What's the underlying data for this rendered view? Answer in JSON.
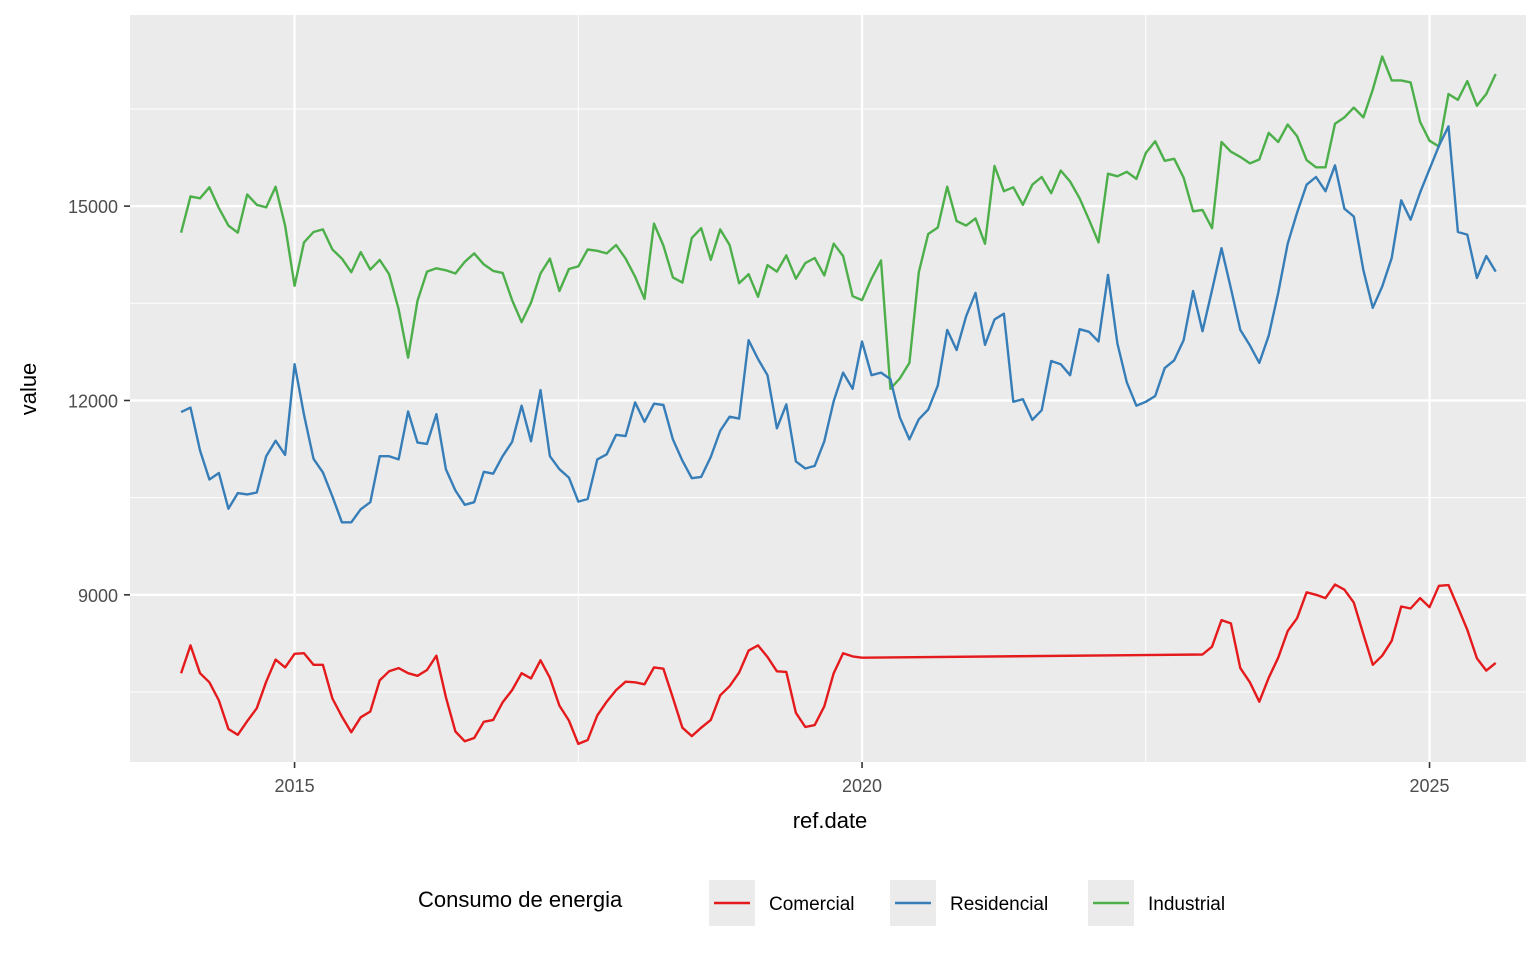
{
  "chart_data": {
    "type": "line",
    "title": "",
    "xlabel": "ref.date",
    "ylabel": "value",
    "xlim": [
      2013.55,
      2025.85
    ],
    "ylim": [
      6420,
      17950
    ],
    "x_ticks": [
      2015,
      2020,
      2025
    ],
    "x_tick_labels": [
      "2015",
      "2020",
      "2025"
    ],
    "y_ticks": [
      9000,
      12000,
      15000
    ],
    "y_tick_labels": [
      "9000",
      "12000",
      "15000"
    ],
    "grid": true,
    "legend": {
      "title": "Consumo de energia",
      "position": "bottom"
    },
    "series": [
      {
        "name": "Industrial",
        "color": "#4DAF4A",
        "x": [
          2014.0,
          2014.083,
          2014.167,
          2014.25,
          2014.333,
          2014.417,
          2014.5,
          2014.583,
          2014.667,
          2014.75,
          2014.833,
          2014.917,
          2015.0,
          2015.083,
          2015.167,
          2015.25,
          2015.333,
          2015.417,
          2015.5,
          2015.583,
          2015.667,
          2015.75,
          2015.833,
          2015.917,
          2016.0,
          2016.083,
          2016.167,
          2016.25,
          2016.333,
          2016.417,
          2016.5,
          2016.583,
          2016.667,
          2016.75,
          2016.833,
          2016.917,
          2017.0,
          2017.083,
          2017.167,
          2017.25,
          2017.333,
          2017.417,
          2017.5,
          2017.583,
          2017.667,
          2017.75,
          2017.833,
          2017.917,
          2018.0,
          2018.083,
          2018.167,
          2018.25,
          2018.333,
          2018.417,
          2018.5,
          2018.583,
          2018.667,
          2018.75,
          2018.833,
          2018.917,
          2019.0,
          2019.083,
          2019.167,
          2019.25,
          2019.333,
          2019.417,
          2019.5,
          2019.583,
          2019.667,
          2019.75,
          2019.833,
          2019.917,
          2020.0,
          2020.083,
          2020.167,
          2020.25,
          2020.333,
          2020.417,
          2020.5,
          2020.583,
          2020.667,
          2020.75,
          2020.833,
          2020.917,
          2021.0,
          2021.083,
          2021.167,
          2021.25,
          2021.333,
          2021.417,
          2021.5,
          2021.583,
          2021.667,
          2021.75,
          2021.833,
          2021.917,
          2022.0,
          2022.083,
          2022.167,
          2022.25,
          2022.333,
          2022.417,
          2022.5,
          2022.583,
          2022.667,
          2022.75,
          2022.833,
          2022.917,
          2023.0,
          2023.083,
          2023.167,
          2023.25,
          2023.333,
          2023.417,
          2023.5,
          2023.583,
          2023.667,
          2023.75,
          2023.833,
          2023.917,
          2024.0,
          2024.083,
          2024.167,
          2024.25,
          2024.333,
          2024.417,
          2024.5,
          2024.583,
          2024.667,
          2024.75,
          2024.833,
          2024.917,
          2025.0,
          2025.083,
          2025.167,
          2025.25,
          2025.333,
          2025.417,
          2025.5,
          2025.583
        ],
        "values": [
          14590,
          15150,
          15120,
          15290,
          14970,
          14700,
          14590,
          15180,
          15020,
          14980,
          15300,
          14700,
          13770,
          14440,
          14600,
          14640,
          14330,
          14190,
          13980,
          14290,
          14020,
          14170,
          13950,
          13410,
          12660,
          13540,
          13990,
          14040,
          14010,
          13960,
          14140,
          14270,
          14100,
          14000,
          13970,
          13550,
          13210,
          13510,
          13960,
          14190,
          13690,
          14030,
          14070,
          14330,
          14310,
          14270,
          14400,
          14190,
          13910,
          13570,
          14730,
          14390,
          13900,
          13820,
          14510,
          14660,
          14170,
          14640,
          14400,
          13810,
          13950,
          13600,
          14090,
          13990,
          14240,
          13880,
          14120,
          14200,
          13930,
          14420,
          14230,
          13610,
          13550,
          13880,
          14160,
          12180,
          12340,
          12580,
          13980,
          14570,
          14670,
          15300,
          14770,
          14700,
          14810,
          14420,
          15620,
          15230,
          15290,
          15020,
          15330,
          15450,
          15200,
          15550,
          15380,
          15120,
          14790,
          14440,
          15500,
          15460,
          15530,
          15420,
          15820,
          16000,
          15700,
          15730,
          15440,
          14920,
          14940,
          14660,
          15990,
          15840,
          15760,
          15660,
          15720,
          16130,
          15990,
          16260,
          16080,
          15710,
          15600,
          15600,
          16270,
          16370,
          16520,
          16370,
          16800,
          17310,
          16940,
          16940,
          16910,
          16300,
          16010,
          15920,
          16730,
          16640,
          16930,
          16550,
          16730,
          17040
        ]
      },
      {
        "name": "Residencial",
        "color": "#377EB8",
        "x": [
          2014.0,
          2014.083,
          2014.167,
          2014.25,
          2014.333,
          2014.417,
          2014.5,
          2014.583,
          2014.667,
          2014.75,
          2014.833,
          2014.917,
          2015.0,
          2015.083,
          2015.167,
          2015.25,
          2015.333,
          2015.417,
          2015.5,
          2015.583,
          2015.667,
          2015.75,
          2015.833,
          2015.917,
          2016.0,
          2016.083,
          2016.167,
          2016.25,
          2016.333,
          2016.417,
          2016.5,
          2016.583,
          2016.667,
          2016.75,
          2016.833,
          2016.917,
          2017.0,
          2017.083,
          2017.167,
          2017.25,
          2017.333,
          2017.417,
          2017.5,
          2017.583,
          2017.667,
          2017.75,
          2017.833,
          2017.917,
          2018.0,
          2018.083,
          2018.167,
          2018.25,
          2018.333,
          2018.417,
          2018.5,
          2018.583,
          2018.667,
          2018.75,
          2018.833,
          2018.917,
          2019.0,
          2019.083,
          2019.167,
          2019.25,
          2019.333,
          2019.417,
          2019.5,
          2019.583,
          2019.667,
          2019.75,
          2019.833,
          2019.917,
          2020.0,
          2020.083,
          2020.167,
          2020.25,
          2020.333,
          2020.417,
          2020.5,
          2020.583,
          2020.667,
          2020.75,
          2020.833,
          2020.917,
          2021.0,
          2021.083,
          2021.167,
          2021.25,
          2021.333,
          2021.417,
          2021.5,
          2021.583,
          2021.667,
          2021.75,
          2021.833,
          2021.917,
          2022.0,
          2022.083,
          2022.167,
          2022.25,
          2022.333,
          2022.417,
          2022.5,
          2022.583,
          2022.667,
          2022.75,
          2022.833,
          2022.917,
          2023.0,
          2023.083,
          2023.167,
          2023.25,
          2023.333,
          2023.417,
          2023.5,
          2023.583,
          2023.667,
          2023.75,
          2023.833,
          2023.917,
          2024.0,
          2024.083,
          2024.167,
          2024.25,
          2024.333,
          2024.417,
          2024.5,
          2024.583,
          2024.667,
          2024.75,
          2024.833,
          2024.917,
          2025.0,
          2025.083,
          2025.167,
          2025.25,
          2025.333,
          2025.417,
          2025.5,
          2025.583
        ],
        "values": [
          11820,
          11890,
          11230,
          10780,
          10880,
          10330,
          10570,
          10550,
          10580,
          11140,
          11380,
          11160,
          12560,
          11780,
          11100,
          10890,
          10520,
          10120,
          10120,
          10320,
          10430,
          11140,
          11140,
          11090,
          11830,
          11350,
          11330,
          11790,
          10940,
          10610,
          10390,
          10430,
          10900,
          10870,
          11140,
          11360,
          11920,
          11370,
          12160,
          11140,
          10940,
          10810,
          10440,
          10480,
          11090,
          11170,
          11470,
          11450,
          11970,
          11670,
          11950,
          11930,
          11400,
          11070,
          10800,
          10820,
          11130,
          11530,
          11750,
          11720,
          12930,
          12640,
          12390,
          11570,
          11940,
          11060,
          10950,
          10990,
          11370,
          11990,
          12430,
          12180,
          12910,
          12390,
          12430,
          12330,
          11740,
          11400,
          11710,
          11860,
          12230,
          13090,
          12780,
          13300,
          13660,
          12860,
          13250,
          13340,
          11980,
          12020,
          11700,
          11850,
          12610,
          12560,
          12390,
          13100,
          13060,
          12910,
          13940,
          12880,
          12280,
          11920,
          11980,
          12070,
          12500,
          12620,
          12930,
          13690,
          13070,
          13700,
          14350,
          13730,
          13090,
          12850,
          12580,
          13000,
          13660,
          14420,
          14900,
          15330,
          15450,
          15230,
          15630,
          14960,
          14840,
          14010,
          13430,
          13760,
          14200,
          15090,
          14790,
          15210,
          15570,
          15930,
          16230,
          14600,
          14560,
          13890,
          14230,
          13990
        ]
      },
      {
        "name": "Comercial",
        "color": "#E41A1C",
        "x": [
          2014.0,
          2014.083,
          2014.167,
          2014.25,
          2014.333,
          2014.417,
          2014.5,
          2014.583,
          2014.667,
          2014.75,
          2014.833,
          2014.917,
          2015.0,
          2015.083,
          2015.167,
          2015.25,
          2015.333,
          2015.417,
          2015.5,
          2015.583,
          2015.667,
          2015.75,
          2015.833,
          2015.917,
          2016.0,
          2016.083,
          2016.167,
          2016.25,
          2016.333,
          2016.417,
          2016.5,
          2016.583,
          2016.667,
          2016.75,
          2016.833,
          2016.917,
          2017.0,
          2017.083,
          2017.167,
          2017.25,
          2017.333,
          2017.417,
          2017.5,
          2017.583,
          2017.667,
          2017.75,
          2017.833,
          2017.917,
          2018.0,
          2018.083,
          2018.167,
          2018.25,
          2018.333,
          2018.417,
          2018.5,
          2018.583,
          2018.667,
          2018.75,
          2018.833,
          2018.917,
          2019.0,
          2019.083,
          2019.167,
          2019.25,
          2019.333,
          2019.417,
          2019.5,
          2019.583,
          2019.667,
          2019.75,
          2019.833,
          2019.917,
          2020.0,
          2023.0,
          2023.083,
          2023.167,
          2023.25,
          2023.333,
          2023.417,
          2023.5,
          2023.583,
          2023.667,
          2023.75,
          2023.833,
          2023.917,
          2024.0,
          2024.083,
          2024.167,
          2024.25,
          2024.333,
          2024.417,
          2024.5,
          2024.583,
          2024.667,
          2024.75,
          2024.833,
          2024.917,
          2025.0,
          2025.083,
          2025.167,
          2025.25,
          2025.333,
          2025.417,
          2025.5,
          2025.583
        ],
        "values": [
          7790,
          8220,
          7790,
          7650,
          7370,
          6930,
          6840,
          7050,
          7250,
          7660,
          8000,
          7880,
          8090,
          8100,
          7920,
          7920,
          7400,
          7120,
          6880,
          7110,
          7200,
          7680,
          7820,
          7870,
          7790,
          7750,
          7840,
          8060,
          7420,
          6890,
          6740,
          6790,
          7040,
          7070,
          7340,
          7530,
          7790,
          7710,
          7990,
          7720,
          7290,
          7060,
          6700,
          6760,
          7140,
          7350,
          7530,
          7660,
          7650,
          7620,
          7880,
          7860,
          7410,
          6950,
          6820,
          6950,
          7070,
          7450,
          7590,
          7800,
          8140,
          8220,
          8040,
          7820,
          7810,
          7180,
          6960,
          6990,
          7280,
          7790,
          8100,
          8050,
          8030,
          8080,
          8200,
          8610,
          8560,
          7870,
          7650,
          7350,
          7720,
          8030,
          8440,
          8640,
          9040,
          9000,
          8950,
          9160,
          9080,
          8880,
          8390,
          7920,
          8060,
          8290,
          8820,
          8790,
          8950,
          8810,
          9140,
          9150,
          8810,
          8460,
          8020,
          7830,
          7950
        ]
      }
    ]
  }
}
